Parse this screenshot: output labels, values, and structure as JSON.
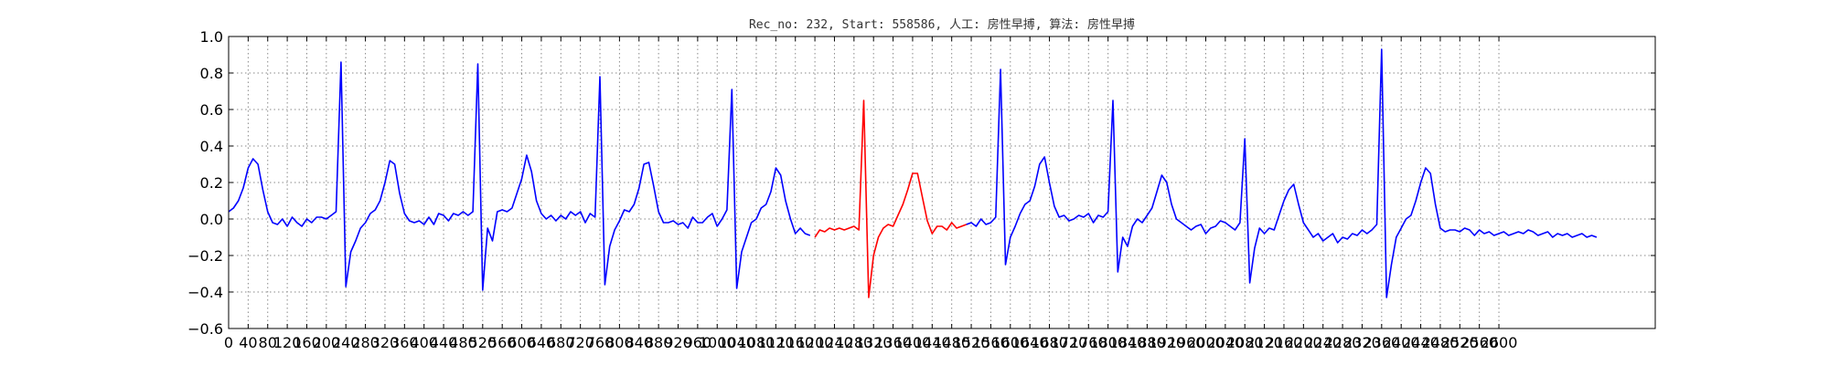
{
  "chart_data": {
    "type": "line",
    "title": "Rec_no: 232, Start: 558586, 人工: 房性早搏, 算法: 房性早搏",
    "xlabel": "",
    "ylabel": "",
    "xlim": [
      0,
      2920
    ],
    "ylim": [
      -0.6,
      1.0
    ],
    "grid": true,
    "x_ticks": [
      0,
      40,
      80,
      120,
      160,
      200,
      240,
      280,
      320,
      360,
      400,
      440,
      480,
      520,
      560,
      600,
      640,
      680,
      720,
      760,
      800,
      840,
      880,
      920,
      960,
      1000,
      1040,
      1080,
      1120,
      1160,
      1200,
      1240,
      1280,
      1320,
      1360,
      1400,
      1440,
      1480,
      1520,
      1560,
      1600,
      1640,
      1680,
      1720,
      1760,
      1800,
      1840,
      1880,
      1920,
      1960,
      2000,
      2040,
      2080,
      2120,
      2160,
      2200,
      2240,
      2280,
      2320,
      2360,
      2400,
      2440,
      2480,
      2520,
      2560,
      2600
    ],
    "x_tick_labels": [
      "0",
      "40",
      "80",
      "120",
      "160",
      "200",
      "240",
      "280",
      "320",
      "360",
      "400",
      "440",
      "480",
      "520",
      "560",
      "600",
      "640",
      "680",
      "720",
      "760",
      "800",
      "840",
      "880",
      "920",
      "960",
      "1000",
      "1040",
      "1080",
      "1120",
      "1160",
      "1200",
      "1240",
      "1280",
      "1320",
      "1360",
      "1400",
      "1440",
      "1480",
      "1520",
      "1560",
      "1600",
      "1640",
      "1680",
      "1720",
      "1760",
      "1800",
      "1840",
      "1880",
      "1920",
      "1960",
      "2000",
      "2040",
      "2080",
      "2120",
      "2160",
      "2200",
      "2240",
      "2280",
      "2320",
      "2360",
      "2400",
      "2440",
      "2480",
      "2520",
      "2560",
      "2600"
    ],
    "y_ticks": [
      -0.6,
      -0.4,
      -0.2,
      0.0,
      0.2,
      0.4,
      0.6,
      0.8,
      1.0
    ],
    "y_tick_labels": [
      "−0.6",
      "−0.4",
      "−0.2",
      "0.0",
      "0.2",
      "0.4",
      "0.6",
      "0.8",
      "1.0"
    ],
    "series": [
      {
        "color": "#0000ff",
        "x": [
          0,
          10,
          20,
          30,
          40,
          50,
          60,
          70,
          80,
          90,
          100,
          110,
          120,
          130,
          140,
          150,
          160,
          170,
          180,
          190,
          200,
          210,
          220,
          230,
          240,
          250,
          260,
          270,
          280,
          290,
          300,
          310,
          320,
          330,
          340,
          350,
          360,
          370,
          380,
          390,
          400,
          410,
          420,
          430,
          440,
          450,
          460,
          470,
          480,
          490,
          500,
          510,
          520,
          530,
          540,
          550,
          560,
          570,
          580,
          590,
          600,
          610,
          620,
          630,
          640,
          650,
          660,
          670,
          680,
          690,
          700,
          710,
          720,
          730,
          740,
          750,
          760,
          770,
          780,
          790,
          800,
          810,
          820,
          830,
          840,
          850,
          860,
          870,
          880,
          890,
          900,
          910,
          920,
          930,
          940,
          950,
          960,
          970,
          980,
          990,
          1000,
          1010,
          1020,
          1030,
          1040,
          1050,
          1060,
          1070,
          1080,
          1090,
          1100,
          1110,
          1120,
          1130,
          1140,
          1150,
          1160,
          1170,
          1180,
          1190
        ],
        "y": [
          0.04,
          0.06,
          0.1,
          0.17,
          0.28,
          0.33,
          0.3,
          0.16,
          0.04,
          -0.02,
          -0.03,
          0.0,
          -0.04,
          0.01,
          -0.02,
          -0.04,
          0.0,
          -0.02,
          0.01,
          0.01,
          0.0,
          0.02,
          0.04,
          0.86,
          -0.37,
          -0.18,
          -0.12,
          -0.05,
          -0.02,
          0.03,
          0.05,
          0.1,
          0.2,
          0.32,
          0.3,
          0.14,
          0.03,
          -0.01,
          -0.02,
          -0.01,
          -0.03,
          0.01,
          -0.03,
          0.03,
          0.02,
          -0.01,
          0.03,
          0.02,
          0.04,
          0.02,
          0.04,
          0.85,
          -0.39,
          -0.05,
          -0.12,
          0.04,
          0.05,
          0.04,
          0.06,
          0.14,
          0.22,
          0.35,
          0.26,
          0.1,
          0.03,
          0.0,
          0.02,
          -0.01,
          0.02,
          0.0,
          0.04,
          0.02,
          0.04,
          -0.02,
          0.03,
          0.01,
          0.78,
          -0.36,
          -0.15,
          -0.06,
          -0.01,
          0.05,
          0.04,
          0.08,
          0.17,
          0.3,
          0.31,
          0.18,
          0.04,
          -0.02,
          -0.02,
          -0.01,
          -0.03,
          -0.02,
          -0.05,
          0.01,
          -0.02,
          -0.02,
          0.01,
          0.03,
          -0.04,
          0.0,
          0.05,
          0.71,
          -0.38,
          -0.18,
          -0.1,
          -0.02,
          0.0,
          0.06,
          0.08,
          0.15,
          0.28,
          0.24,
          0.1,
          0.0,
          -0.08,
          -0.05,
          -0.08,
          -0.09
        ]
      },
      {
        "color": "#ff0000",
        "x": [
          1200,
          1210,
          1220,
          1230,
          1240,
          1250,
          1260,
          1270,
          1280,
          1290,
          1300,
          1310,
          1320,
          1330,
          1340,
          1350,
          1360,
          1370,
          1380,
          1390,
          1400,
          1410,
          1420,
          1430,
          1440,
          1450,
          1460,
          1470,
          1480,
          1490,
          1500,
          1510
        ],
        "y": [
          -0.1,
          -0.06,
          -0.07,
          -0.05,
          -0.06,
          -0.05,
          -0.06,
          -0.05,
          -0.04,
          -0.06,
          0.65,
          -0.43,
          -0.2,
          -0.1,
          -0.05,
          -0.03,
          -0.04,
          0.02,
          0.08,
          0.16,
          0.25,
          0.25,
          0.12,
          -0.01,
          -0.08,
          -0.04,
          -0.04,
          -0.06,
          -0.02,
          -0.05,
          -0.04,
          -0.03
        ]
      },
      {
        "color": "#0000ff",
        "x": [
          1510,
          1520,
          1530,
          1540,
          1550,
          1560,
          1570,
          1580,
          1590,
          1600,
          1610,
          1620,
          1630,
          1640,
          1650,
          1660,
          1670,
          1680,
          1690,
          1700,
          1710,
          1720,
          1730,
          1740,
          1750,
          1760,
          1770,
          1780,
          1790,
          1800,
          1810,
          1820,
          1830,
          1840,
          1850,
          1860,
          1870,
          1880,
          1890,
          1900,
          1910,
          1920,
          1930,
          1940,
          1950,
          1960,
          1970,
          1980,
          1990,
          2000,
          2010,
          2020,
          2030,
          2040,
          2050,
          2060,
          2070,
          2080,
          2090,
          2100,
          2110,
          2120,
          2130,
          2140,
          2150,
          2160,
          2170,
          2180,
          2190,
          2200,
          2210,
          2220,
          2230,
          2240,
          2250,
          2260,
          2270,
          2280,
          2290,
          2300,
          2310,
          2320,
          2330,
          2340,
          2350,
          2360,
          2370,
          2380,
          2390,
          2400,
          2410,
          2420,
          2430,
          2440,
          2450,
          2460,
          2470,
          2480,
          2490,
          2500,
          2510,
          2520,
          2530,
          2540,
          2550,
          2560,
          2570,
          2580,
          2590,
          2600,
          2610,
          2620,
          2630,
          2640,
          2650,
          2660,
          2670,
          2680,
          2690,
          2700,
          2710,
          2720,
          2730,
          2740,
          2750,
          2760,
          2770,
          2780,
          2790,
          2800
        ],
        "y": [
          -0.03,
          -0.02,
          -0.04,
          0.0,
          -0.03,
          -0.02,
          0.01,
          0.82,
          -0.25,
          -0.1,
          -0.04,
          0.03,
          0.08,
          0.1,
          0.18,
          0.3,
          0.34,
          0.2,
          0.07,
          0.01,
          0.02,
          -0.01,
          0.0,
          0.02,
          0.01,
          0.03,
          -0.02,
          0.02,
          0.01,
          0.04,
          0.65,
          -0.29,
          -0.1,
          -0.15,
          -0.04,
          0.0,
          -0.02,
          0.02,
          0.06,
          0.15,
          0.24,
          0.2,
          0.08,
          0.0,
          -0.02,
          -0.04,
          -0.06,
          -0.04,
          -0.03,
          -0.08,
          -0.05,
          -0.04,
          -0.01,
          -0.02,
          -0.04,
          -0.06,
          -0.02,
          0.44,
          -0.35,
          -0.16,
          -0.05,
          -0.08,
          -0.05,
          -0.06,
          0.02,
          0.1,
          0.16,
          0.19,
          0.08,
          -0.02,
          -0.06,
          -0.1,
          -0.08,
          -0.12,
          -0.1,
          -0.08,
          -0.13,
          -0.1,
          -0.11,
          -0.08,
          -0.09,
          -0.06,
          -0.08,
          -0.06,
          -0.03,
          0.93,
          -0.43,
          -0.25,
          -0.1,
          -0.05,
          0.0,
          0.02,
          0.1,
          0.2,
          0.28,
          0.25,
          0.08,
          -0.05,
          -0.07,
          -0.06,
          -0.06,
          -0.07,
          -0.05,
          -0.06,
          -0.09,
          -0.06,
          -0.08,
          -0.07,
          -0.09,
          -0.08,
          -0.07,
          -0.09,
          -0.08,
          -0.07,
          -0.08,
          -0.06,
          -0.07,
          -0.09,
          -0.08,
          -0.07,
          -0.1,
          -0.08,
          -0.09,
          -0.08,
          -0.1,
          -0.09,
          -0.08,
          -0.1,
          -0.09,
          -0.1
        ]
      }
    ]
  }
}
